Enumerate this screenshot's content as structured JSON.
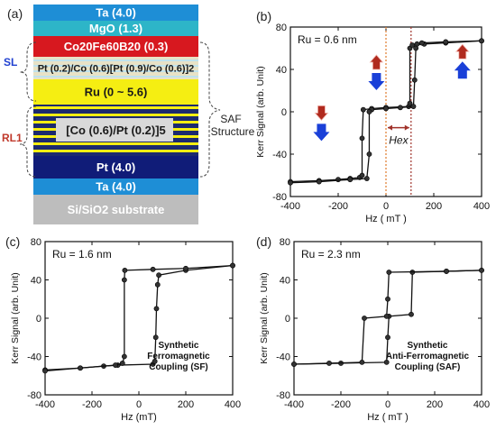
{
  "panel_a": {
    "label": "(a)",
    "stack": [
      {
        "text": "Ta (4.0)",
        "color": "#1E8ED6",
        "text_color": "#ffffff"
      },
      {
        "text": "MgO (1.3)",
        "color": "#2DB5C8",
        "text_color": "#ffffff"
      },
      {
        "text": "Co20Fe60B20 (0.3)",
        "color": "#D7181F",
        "text_color": "#ffffff"
      },
      {
        "text": "Pt (0.2)/Co (0.6)[Pt (0.9)/Co (0.6)]2",
        "color": "#E8E2C6",
        "text_color": "#1a1a1a"
      },
      {
        "text": "Ru (0 ~ 5.6)",
        "color": "#F5EE12",
        "text_color": "#1a1a1a"
      },
      {
        "text": "[Co (0.6)/Pt (0.2)]5",
        "color": "#1C2A6E",
        "text_color": "#1a1a1a"
      },
      {
        "text": "Pt (4.0)",
        "color": "#101C78",
        "text_color": "#ffffff"
      },
      {
        "text": "Ta (4.0)",
        "color": "#1E8ED6",
        "text_color": "#ffffff"
      },
      {
        "text": "Si/SiO2 substrate",
        "color": "#BDBDBD",
        "text_color": "#ffffff"
      }
    ],
    "sl_label": "SL",
    "rl1_label": "RL1",
    "saf_label_1": "SAF",
    "saf_label_2": "Structure",
    "label_colors": {
      "sl": "#1f3fd0",
      "rl1": "#c0392b",
      "saf": "#222222"
    }
  },
  "chart_data": [
    {
      "panel": "(b)",
      "type": "line",
      "annotation": "Ru = 0.6 nm",
      "xlabel": "Hz ( mT )",
      "ylabel": "Kerr Signal (arb. Unit)",
      "xlim": [
        -400,
        400
      ],
      "ylim": [
        -80,
        80
      ],
      "xticks": [
        -400,
        -200,
        0,
        200,
        400
      ],
      "yticks": [
        -80,
        -40,
        0,
        40,
        80
      ],
      "hex_label": "Hex",
      "series": [
        {
          "values": [
            [
              -400,
              -66
            ],
            [
              -280,
              -65
            ],
            [
              -200,
              -64
            ],
            [
              -150,
              -63
            ],
            [
              -110,
              -62
            ],
            [
              -100,
              -60
            ],
            [
              -100,
              -25
            ],
            [
              -95,
              2
            ],
            [
              -60,
              3
            ],
            [
              0,
              4
            ],
            [
              95,
              5
            ],
            [
              100,
              8
            ],
            [
              100,
              60
            ],
            [
              110,
              63
            ],
            [
              160,
              64
            ],
            [
              250,
              65
            ],
            [
              400,
              67
            ]
          ]
        },
        {
          "values": [
            [
              400,
              67
            ],
            [
              250,
              66
            ],
            [
              150,
              65
            ],
            [
              130,
              64
            ],
            [
              125,
              60
            ],
            [
              120,
              30
            ],
            [
              115,
              5
            ],
            [
              60,
              4
            ],
            [
              0,
              3
            ],
            [
              -60,
              2
            ],
            [
              -70,
              0
            ],
            [
              -70,
              -40
            ],
            [
              -80,
              -63
            ],
            [
              -150,
              -64
            ],
            [
              -280,
              -66
            ],
            [
              -400,
              -67
            ]
          ]
        }
      ],
      "vlines": [
        0,
        105
      ]
    },
    {
      "panel": "(c)",
      "type": "line",
      "annotation": "Ru = 1.6 nm",
      "xlabel": "Hz (mT)",
      "ylabel": "Kerr Signal (arb. Unit)",
      "xlim": [
        -400,
        400
      ],
      "ylim": [
        -80,
        80
      ],
      "xticks": [
        -400,
        -200,
        0,
        200,
        400
      ],
      "yticks": [
        -80,
        -40,
        0,
        40,
        80
      ],
      "inset_lines": [
        "Synthetic",
        "Ferromagnetic",
        "Coupling (SF)"
      ],
      "series": [
        {
          "values": [
            [
              -400,
              -54
            ],
            [
              -250,
              -52
            ],
            [
              -150,
              -50
            ],
            [
              -90,
              -49
            ],
            [
              60,
              -48
            ],
            [
              68,
              -45
            ],
            [
              72,
              -20
            ],
            [
              75,
              10
            ],
            [
              80,
              35
            ],
            [
              85,
              45
            ],
            [
              200,
              50
            ],
            [
              400,
              55
            ]
          ]
        },
        {
          "values": [
            [
              400,
              55
            ],
            [
              200,
              52
            ],
            [
              60,
              51
            ],
            [
              -60,
              50
            ],
            [
              -62,
              40
            ],
            [
              -62,
              -40
            ],
            [
              -70,
              -47
            ],
            [
              -100,
              -49
            ],
            [
              -250,
              -52
            ],
            [
              -400,
              -55
            ]
          ]
        }
      ]
    },
    {
      "panel": "(d)",
      "type": "line",
      "annotation": "Ru = 2.3 nm",
      "xlabel": "Hz ( mT )",
      "ylabel": "Kerr Signal (arb. Unit)",
      "xlim": [
        -400,
        400
      ],
      "ylim": [
        -80,
        80
      ],
      "xticks": [
        -400,
        -200,
        0,
        200,
        400
      ],
      "yticks": [
        -80,
        -40,
        0,
        40,
        80
      ],
      "inset_lines": [
        "Synthetic",
        "Anti-Ferromagnetic",
        "Coupling (SAF)"
      ],
      "series": [
        {
          "values": [
            [
              -400,
              -48
            ],
            [
              -200,
              -47
            ],
            [
              -5,
              -46
            ],
            [
              0,
              -20
            ],
            [
              5,
              2
            ],
            [
              100,
              4
            ],
            [
              105,
              48
            ],
            [
              250,
              49
            ],
            [
              400,
              50
            ]
          ]
        },
        {
          "values": [
            [
              400,
              50
            ],
            [
              250,
              49
            ],
            [
              5,
              48
            ],
            [
              0,
              20
            ],
            [
              -5,
              2
            ],
            [
              -100,
              0
            ],
            [
              -110,
              -46
            ],
            [
              -250,
              -47
            ],
            [
              -400,
              -48
            ]
          ]
        }
      ]
    }
  ]
}
